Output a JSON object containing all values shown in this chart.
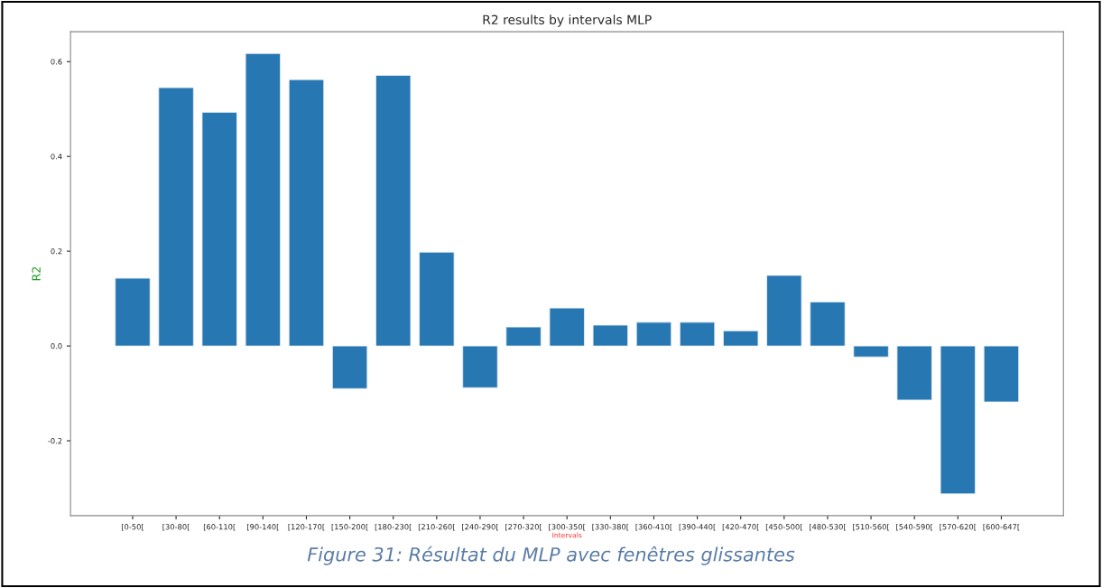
{
  "chart_data": {
    "type": "bar",
    "title": "R2 results by intervals MLP",
    "xlabel": "Intervals",
    "ylabel": "R2",
    "categories": [
      "[0-50[",
      "[30-80[",
      "[60-110[",
      "[90-140[",
      "[120-170[",
      "[150-200[",
      "[180-230[",
      "[210-260[",
      "[240-290[",
      "[270-320[",
      "[300-350[",
      "[330-380[",
      "[360-410[",
      "[390-440[",
      "[420-470[",
      "[450-500[",
      "[480-530[",
      "[510-560[",
      "[540-590[",
      "[570-620[",
      "[600-647["
    ],
    "values": [
      0.143,
      0.545,
      0.493,
      0.617,
      0.562,
      -0.09,
      0.571,
      0.198,
      -0.088,
      0.04,
      0.08,
      0.044,
      0.05,
      0.05,
      0.032,
      0.149,
      0.093,
      -0.023,
      -0.114,
      -0.312,
      -0.118
    ],
    "color": "#2777b3",
    "ylim": [
      -0.358,
      0.663
    ],
    "yticks": [
      {
        "value": -0.2,
        "label": "-0.2"
      },
      {
        "value": 0.0,
        "label": "0.0"
      },
      0.2,
      0.4,
      0.6
    ],
    "grid": false,
    "annotations": [
      "Figure 31: Résultat du MLP avec fenêtres glissantes"
    ]
  }
}
